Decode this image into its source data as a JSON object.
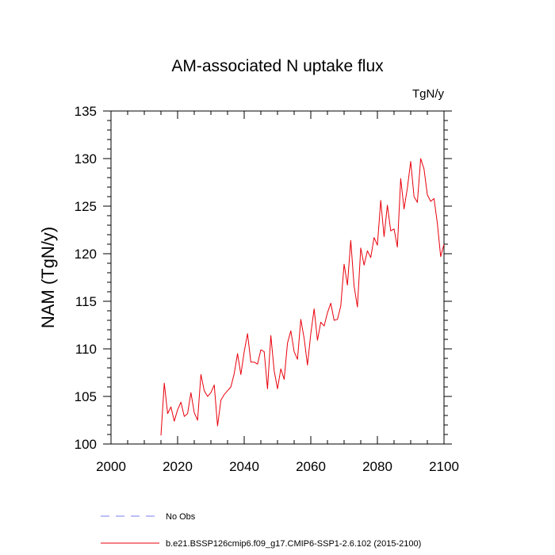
{
  "chart_data": {
    "type": "line",
    "title": "AM-associated N uptake flux",
    "units_label": "TgN/y",
    "ylabel": "NAM  (TgN/y)",
    "xlabel": "",
    "xlim": [
      2000,
      2100
    ],
    "ylim": [
      100,
      135
    ],
    "x_ticks": [
      2000,
      2020,
      2040,
      2060,
      2080,
      2100
    ],
    "y_ticks": [
      100,
      105,
      110,
      115,
      120,
      125,
      130,
      135
    ],
    "grid": false,
    "legend_placement": "bottom",
    "series": [
      {
        "name": "b.e21.BSSP126cmip6.f09_g17.CMIP6-SSP1-2.6.102 (2015-2100)",
        "color": "#e8000b",
        "style": "solid",
        "x": [
          2015,
          2016,
          2017,
          2018,
          2019,
          2020,
          2021,
          2022,
          2023,
          2024,
          2025,
          2026,
          2027,
          2028,
          2029,
          2030,
          2031,
          2032,
          2033,
          2034,
          2035,
          2036,
          2037,
          2038,
          2039,
          2040,
          2041,
          2042,
          2043,
          2044,
          2045,
          2046,
          2047,
          2048,
          2049,
          2050,
          2051,
          2052,
          2053,
          2054,
          2055,
          2056,
          2057,
          2058,
          2059,
          2060,
          2061,
          2062,
          2063,
          2064,
          2065,
          2066,
          2067,
          2068,
          2069,
          2070,
          2071,
          2072,
          2073,
          2074,
          2075,
          2076,
          2077,
          2078,
          2079,
          2080,
          2081,
          2082,
          2083,
          2084,
          2085,
          2086,
          2087,
          2088,
          2089,
          2090,
          2091,
          2092,
          2093,
          2094,
          2095,
          2096,
          2097,
          2098,
          2099,
          2100
        ],
        "values": [
          100.9,
          106.4,
          103.2,
          103.9,
          102.4,
          103.6,
          104.4,
          102.9,
          103.2,
          105.4,
          103.3,
          102.5,
          107.3,
          105.6,
          105.0,
          105.4,
          106.2,
          101.9,
          104.6,
          105.2,
          105.6,
          106.0,
          107.4,
          109.5,
          107.3,
          109.7,
          111.6,
          108.6,
          108.6,
          108.4,
          109.9,
          109.7,
          105.8,
          111.4,
          107.7,
          105.8,
          107.9,
          106.8,
          110.6,
          111.9,
          109.7,
          108.9,
          113.1,
          111.1,
          108.3,
          111.6,
          114.2,
          110.9,
          112.8,
          112.4,
          113.8,
          114.8,
          113.0,
          113.1,
          114.5,
          118.9,
          116.7,
          121.4,
          116.6,
          114.4,
          120.6,
          118.8,
          120.3,
          119.6,
          121.7,
          120.9,
          125.6,
          121.8,
          125.1,
          122.4,
          122.6,
          120.7,
          127.9,
          124.7,
          126.9,
          129.7,
          126.0,
          125.4,
          130.0,
          128.9,
          126.2,
          125.5,
          125.8,
          123.2,
          119.7,
          121.0
        ]
      },
      {
        "name": "No Obs",
        "color": "#7c7cf0",
        "style": "dashed",
        "x": [],
        "values": []
      }
    ]
  }
}
